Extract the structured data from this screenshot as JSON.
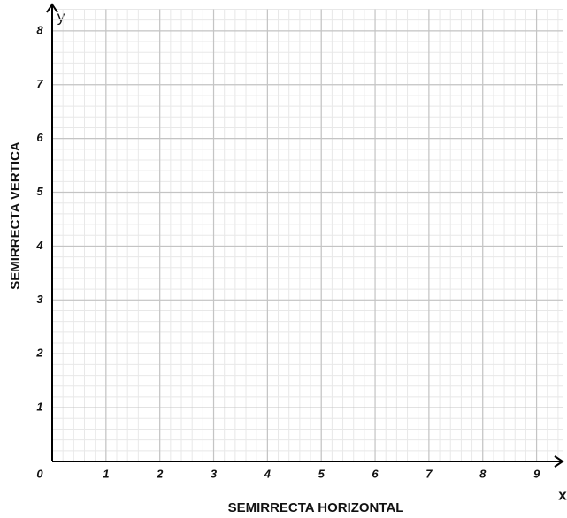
{
  "chart_data": {
    "type": "scatter",
    "x_label": "SEMIRRECTA HORIZONTAL",
    "y_label": "SEMIRRECTA VERTICA",
    "x_axis_name": "x",
    "y_axis_name": "y",
    "xlim": [
      0,
      9.5
    ],
    "ylim": [
      0,
      8.4
    ],
    "xticks": [
      0,
      1,
      2,
      3,
      4,
      5,
      6,
      7,
      8,
      9
    ],
    "yticks": [
      1,
      2,
      3,
      4,
      5,
      6,
      7,
      8
    ],
    "grid": true,
    "minor_grid": true
  }
}
